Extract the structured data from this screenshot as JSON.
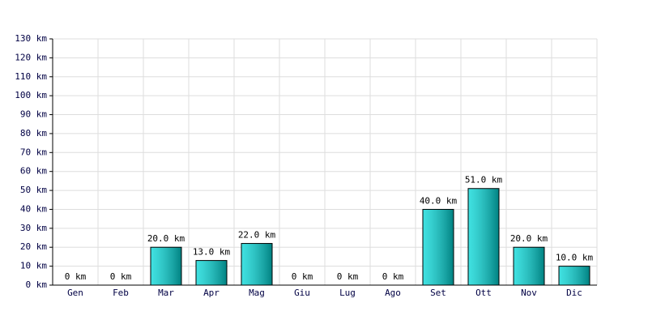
{
  "chart_data": {
    "type": "bar",
    "categories": [
      "Gen",
      "Feb",
      "Mar",
      "Apr",
      "Mag",
      "Giu",
      "Lug",
      "Ago",
      "Set",
      "Ott",
      "Nov",
      "Dic"
    ],
    "values": [
      0,
      0,
      20,
      13,
      22,
      0,
      0,
      0,
      40,
      51,
      20,
      10
    ],
    "value_labels": [
      "0 km",
      "0 km",
      "20.0 km",
      "13.0 km",
      "22.0 km",
      "0 km",
      "0 km",
      "0 km",
      "40.0 km",
      "51.0 km",
      "20.0 km",
      "10.0 km"
    ],
    "color": "#00d8d8",
    "ylim": [
      0,
      130
    ],
    "yticks": [
      {
        "value": 0,
        "label": "0 km"
      },
      {
        "value": 10,
        "label": "10 km"
      },
      {
        "value": 20,
        "label": "20 km"
      },
      {
        "value": 30,
        "label": "30 km"
      },
      {
        "value": 40,
        "label": "40 km"
      },
      {
        "value": 50,
        "label": "50 km"
      },
      {
        "value": 60,
        "label": "60 km"
      },
      {
        "value": 70,
        "label": "70 km"
      },
      {
        "value": 80,
        "label": "80 km"
      },
      {
        "value": 90,
        "label": "90 km"
      },
      {
        "value": 100,
        "label": "100 km"
      },
      {
        "value": 110,
        "label": "110 km"
      },
      {
        "value": 120,
        "label": "120 km"
      },
      {
        "value": 130,
        "label": "130 km"
      }
    ],
    "grid": true
  }
}
